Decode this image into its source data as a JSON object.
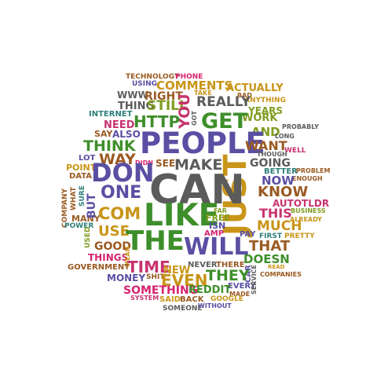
{
  "colors": {
    "background": "#ffffff",
    "purple": "#5a4fa3",
    "green": "#3e8f2b",
    "orange": "#d98a19",
    "grey": "#5b5b5b",
    "red": "#c8336f",
    "brown": "#9a5a22",
    "olive": "#7f9c1f",
    "gold": "#c99518",
    "rose": "#d6246e",
    "teal": "#2d7f7a"
  },
  "words": {
    "technology": "TECHNOLOGY",
    "phone": "PHONE",
    "using": "USING",
    "comments": "COMMENTS",
    "take": "TAKE",
    "bad": "BAD",
    "actually": "ACTUALLY",
    "www": "WWW",
    "right": "RIGHT",
    "anything": "ANYTHING",
    "thing": "THING",
    "still": "STILL",
    "really": "REALLY",
    "work": "WORK",
    "internet": "INTERNET",
    "you": "YOU",
    "got": "GOT",
    "get": "GET",
    "years": "YEARS",
    "http": "HTTP",
    "need": "NEED",
    "probably": "PROBABLY",
    "say": "SAY",
    "also": "ALSO",
    "and": "AND",
    "long": "LONG",
    "think": "THINK",
    "people": "PEOPLE",
    "want": "WANT",
    "well": "WELL",
    "lot": "LOT",
    "way": "WAY",
    "though": "THOUGH",
    "didn": "DIDN",
    "see": "SEE",
    "make": "MAKE",
    "going": "GOING",
    "point": "POINT",
    "better": "BETTER",
    "problem": "PROBLEM",
    "data": "DATA",
    "don": "DON",
    "enough": "ENOUGH",
    "now": "NOW",
    "just": "JUST",
    "can": "CAN",
    "know": "KNOW",
    "company": "COMPANY",
    "what": "WHAT",
    "sure": "SURE",
    "one": "ONE",
    "autotldr": "AUTOTLDR",
    "many": "MANY",
    "like": "LIKE",
    "business": "BUSINESS",
    "far": "FAR",
    "this": "THIS",
    "but": "BUT",
    "com": "COM",
    "free": "FREE",
    "already": "ALREADY",
    "power": "POWER",
    "isn": "ISN",
    "much": "MUCH",
    "use": "USE",
    "amp": "AMP",
    "used": "USED",
    "pay": "PAY",
    "first": "FIRST",
    "pretty": "PRETTY",
    "the": "THE",
    "good": "GOOD",
    "will": "WILL",
    "that": "THAT",
    "things": "THINGS",
    "mean": "MEAN",
    "doesn": "DOESN",
    "time": "TIME",
    "government": "GOVERNMENT",
    "never": "NEVER",
    "there": "THERE",
    "read": "READ",
    "new": "NEW",
    "car": "CAR",
    "they": "THEY",
    "companies": "COMPANIES",
    "money": "MONEY",
    "shit": "SHIT",
    "even": "EVEN",
    "every": "EVERY",
    "service": "SERVICE",
    "something": "SOMETHING",
    "reddit": "REDDIT",
    "made": "MADE",
    "system": "SYSTEM",
    "said": "SAID",
    "back": "BACK",
    "google": "GOOGLE",
    "someone": "SOMEONE",
    "without": "WITHOUT"
  }
}
